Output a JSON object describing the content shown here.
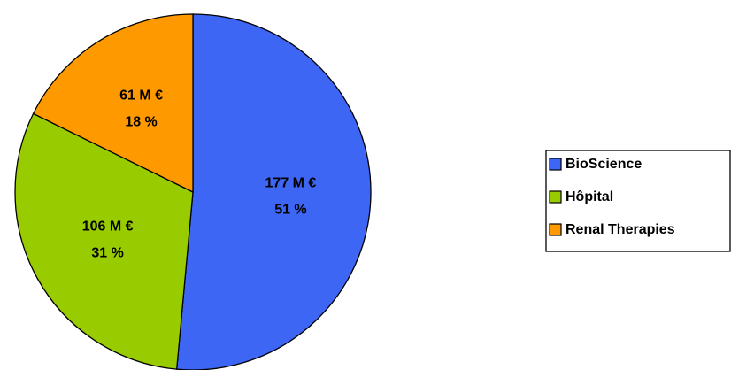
{
  "chart_data": {
    "type": "pie",
    "categories": [
      "BioScience",
      "Hôpital",
      "Renal Therapies"
    ],
    "values": [
      177,
      106,
      61
    ],
    "value_labels": [
      "177 M €",
      "106 M €",
      "61 M €"
    ],
    "percent_values": [
      51,
      31,
      18
    ],
    "percent_labels": [
      "51 %",
      "31 %",
      "18 %"
    ],
    "colors": [
      "#3d66f5",
      "#99cc00",
      "#ff9900"
    ],
    "legend": "right"
  }
}
